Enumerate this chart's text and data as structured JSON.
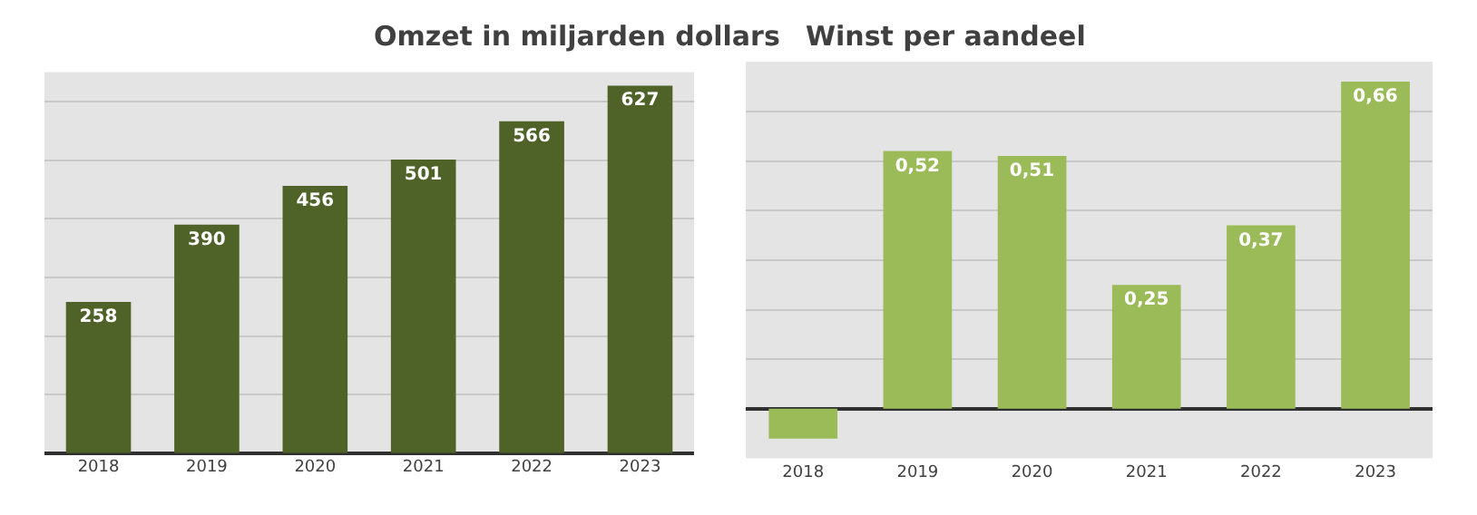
{
  "chart_data": [
    {
      "type": "bar",
      "title": "Omzet in miljarden dollars",
      "categories": [
        "2018",
        "2019",
        "2020",
        "2021",
        "2022",
        "2023"
      ],
      "values": [
        258,
        390,
        456,
        501,
        566,
        627
      ],
      "color": "#4f6228",
      "ylim": [
        0,
        650
      ],
      "yticks": [
        {
          "value": 0,
          "label": null
        },
        {
          "value": 100,
          "label": null
        },
        {
          "value": 200,
          "label": null
        },
        {
          "value": 300,
          "label": null
        },
        {
          "value": 400,
          "label": null
        },
        {
          "value": 500,
          "label": null
        },
        {
          "value": 600,
          "label": null
        }
      ],
      "grid": "y",
      "tick_labels": "x",
      "data_labels": true
    },
    {
      "type": "bar",
      "title": "Winst per aandeel",
      "categories": [
        "2018",
        "2019",
        "2020",
        "2021",
        "2022",
        "2023"
      ],
      "values": [
        -0.06,
        0.52,
        0.51,
        0.25,
        0.37,
        0.66
      ],
      "value_labels": [
        null,
        "0,52",
        "0,51",
        "0,25",
        "0,37",
        "0,66"
      ],
      "color": "#9bbb59",
      "ylim": [
        -0.1,
        0.7
      ],
      "yticks": [
        {
          "value": -0.1,
          "label": null
        },
        {
          "value": 0,
          "label": null
        },
        {
          "value": 0.1,
          "label": null
        },
        {
          "value": 0.2,
          "label": null
        },
        {
          "value": 0.3,
          "label": null
        },
        {
          "value": 0.4,
          "label": null
        },
        {
          "value": 0.5,
          "label": null
        },
        {
          "value": 0.6,
          "label": null
        },
        {
          "value": 0.7,
          "label": null
        }
      ],
      "grid": "y",
      "tick_labels": "x"
    }
  ]
}
